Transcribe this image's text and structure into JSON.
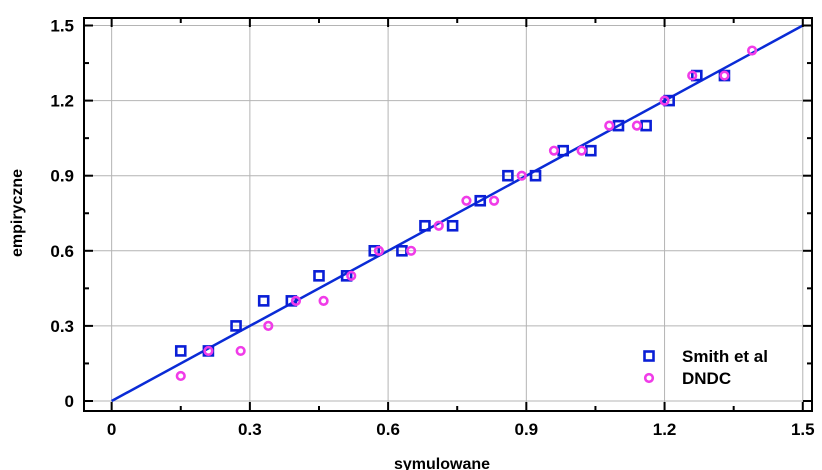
{
  "chart_data": {
    "type": "scatter",
    "title": "",
    "xlabel": "symulowane",
    "ylabel": "empiryczne",
    "xlim": [
      -0.06,
      1.52
    ],
    "ylim": [
      -0.04,
      1.53
    ],
    "x_ticks": [
      0,
      0.3,
      0.6,
      0.9,
      1.2,
      1.5
    ],
    "y_ticks": [
      0,
      0.3,
      0.6,
      0.9,
      1.2,
      1.5
    ],
    "x_tick_labels": [
      "0",
      "0.3",
      "0.6",
      "0.9",
      "1.2",
      "1.5"
    ],
    "y_tick_labels": [
      "0",
      "0.3",
      "0.6",
      "0.9",
      "1.2",
      "1.5"
    ],
    "grid": true,
    "legend_position": "bottom-right",
    "reference_line": {
      "from": [
        0,
        0
      ],
      "to": [
        1.5,
        1.5
      ],
      "color": "#0a2bd6"
    },
    "series": [
      {
        "name": "Smith et al",
        "marker": "square",
        "color": "#0a1fd6",
        "points": [
          [
            0.15,
            0.2
          ],
          [
            0.21,
            0.2
          ],
          [
            0.27,
            0.3
          ],
          [
            0.33,
            0.4
          ],
          [
            0.39,
            0.4
          ],
          [
            0.45,
            0.5
          ],
          [
            0.51,
            0.5
          ],
          [
            0.57,
            0.6
          ],
          [
            0.63,
            0.6
          ],
          [
            0.68,
            0.7
          ],
          [
            0.74,
            0.7
          ],
          [
            0.8,
            0.8
          ],
          [
            0.86,
            0.9
          ],
          [
            0.92,
            0.9
          ],
          [
            0.98,
            1.0
          ],
          [
            1.04,
            1.0
          ],
          [
            1.1,
            1.1
          ],
          [
            1.16,
            1.1
          ],
          [
            1.21,
            1.2
          ],
          [
            1.27,
            1.3
          ],
          [
            1.33,
            1.3
          ]
        ]
      },
      {
        "name": "DNDC",
        "marker": "circle",
        "color": "#f03ce8",
        "points": [
          [
            0.15,
            0.1
          ],
          [
            0.21,
            0.2
          ],
          [
            0.28,
            0.2
          ],
          [
            0.34,
            0.3
          ],
          [
            0.4,
            0.4
          ],
          [
            0.46,
            0.4
          ],
          [
            0.52,
            0.5
          ],
          [
            0.58,
            0.6
          ],
          [
            0.65,
            0.6
          ],
          [
            0.71,
            0.7
          ],
          [
            0.77,
            0.8
          ],
          [
            0.83,
            0.8
          ],
          [
            0.89,
            0.9
          ],
          [
            0.96,
            1.0
          ],
          [
            1.02,
            1.0
          ],
          [
            1.08,
            1.1
          ],
          [
            1.14,
            1.1
          ],
          [
            1.2,
            1.2
          ],
          [
            1.26,
            1.3
          ],
          [
            1.33,
            1.3
          ],
          [
            1.39,
            1.4
          ]
        ]
      }
    ]
  }
}
